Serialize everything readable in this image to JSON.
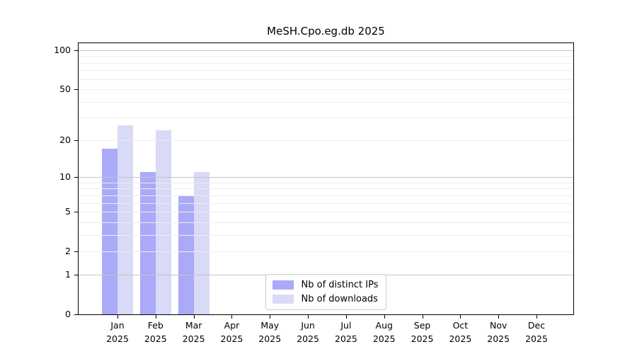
{
  "chart_data": {
    "type": "bar",
    "title": "MeSH.Cpo.eg.db 2025",
    "year": "2025",
    "categories": [
      "Jan",
      "Feb",
      "Mar",
      "Apr",
      "May",
      "Jun",
      "Jul",
      "Aug",
      "Sep",
      "Oct",
      "Nov",
      "Dec"
    ],
    "series": [
      {
        "key": "distinct-ips",
        "name": "Nb of distinct IPs",
        "color": "#aaaaf8",
        "values": [
          17,
          11,
          7,
          0,
          0,
          0,
          0,
          0,
          0,
          0,
          0,
          0
        ]
      },
      {
        "key": "downloads",
        "name": "Nb of downloads",
        "color": "#d9d9f8",
        "values": [
          26,
          24,
          11,
          0,
          0,
          0,
          0,
          0,
          0,
          0,
          0,
          0
        ]
      }
    ],
    "xlabel": "",
    "ylabel": "",
    "yscale": "log1p",
    "ylim": [
      0,
      113
    ],
    "yticks": [
      0,
      1,
      2,
      5,
      10,
      20,
      50,
      100
    ],
    "grid": {
      "major": [
        1,
        10,
        100
      ],
      "minor": [
        2,
        3,
        4,
        5,
        6,
        7,
        8,
        9,
        20,
        30,
        40,
        50,
        60,
        70,
        80,
        90
      ]
    },
    "legend": {
      "position": "lower center"
    },
    "colors": {
      "grid_major": "#c3c3c3",
      "grid_minor": "#ececec",
      "spine": "#000000",
      "text": "#000000"
    }
  }
}
